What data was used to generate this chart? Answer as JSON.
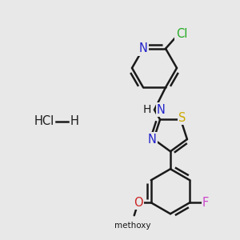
{
  "background_color": "#e8e8e8",
  "bond_color": "#1a1a1a",
  "bond_width": 1.8,
  "figsize": [
    3.0,
    3.0
  ],
  "dpi": 100,
  "atom_bg_color": "#e8e8e8",
  "colors": {
    "C": "#1a1a1a",
    "N": "#2222cc",
    "S": "#ccaa00",
    "O": "#cc2222",
    "F": "#cc44cc",
    "Cl": "#22aa22",
    "H": "#1a1a1a"
  }
}
